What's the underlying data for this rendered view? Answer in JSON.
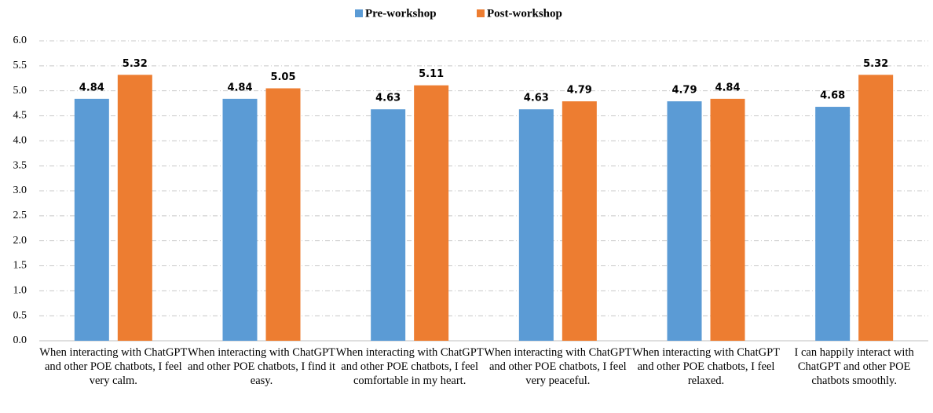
{
  "chart_data": {
    "type": "bar",
    "categories": [
      "When interacting with ChatGPT and other POE chatbots, I feel very calm.",
      "When interacting with ChatGPT and other POE chatbots, I find it easy.",
      "When interacting with ChatGPT and other POE chatbots, I feel comfortable in my heart.",
      "When interacting with ChatGPT and other POE chatbots, I feel very peaceful.",
      "When interacting with ChatGPT and other POE chatbots, I feel relaxed.",
      "I can happily interact with ChatGPT and other POE chatbots smoothly."
    ],
    "series": [
      {
        "name": "Pre-workshop",
        "color": "#5b9bd5",
        "values": [
          4.84,
          4.84,
          4.63,
          4.63,
          4.79,
          4.68
        ]
      },
      {
        "name": "Post-workshop",
        "color": "#ed7d31",
        "values": [
          5.32,
          5.05,
          5.11,
          4.79,
          4.84,
          5.32
        ]
      }
    ],
    "ylim": [
      0,
      6
    ],
    "yticks": [
      {
        "value": 0,
        "label": "0.0"
      },
      {
        "value": 0.5,
        "label": "0.5"
      },
      {
        "value": 1,
        "label": "1.0"
      },
      {
        "value": 1.5,
        "label": "1.5"
      },
      {
        "value": 2,
        "label": "2.0"
      },
      {
        "value": 2.5,
        "label": "2.5"
      },
      {
        "value": 3,
        "label": "3.0"
      },
      {
        "value": 3.5,
        "label": "3.5"
      },
      {
        "value": 4,
        "label": "4.0"
      },
      {
        "value": 4.5,
        "label": "4.5"
      },
      {
        "value": 5,
        "label": "5.0"
      },
      {
        "value": 5.5,
        "label": "5.5"
      },
      {
        "value": 6,
        "label": "6.0"
      }
    ],
    "grid": true,
    "legend": "top"
  }
}
